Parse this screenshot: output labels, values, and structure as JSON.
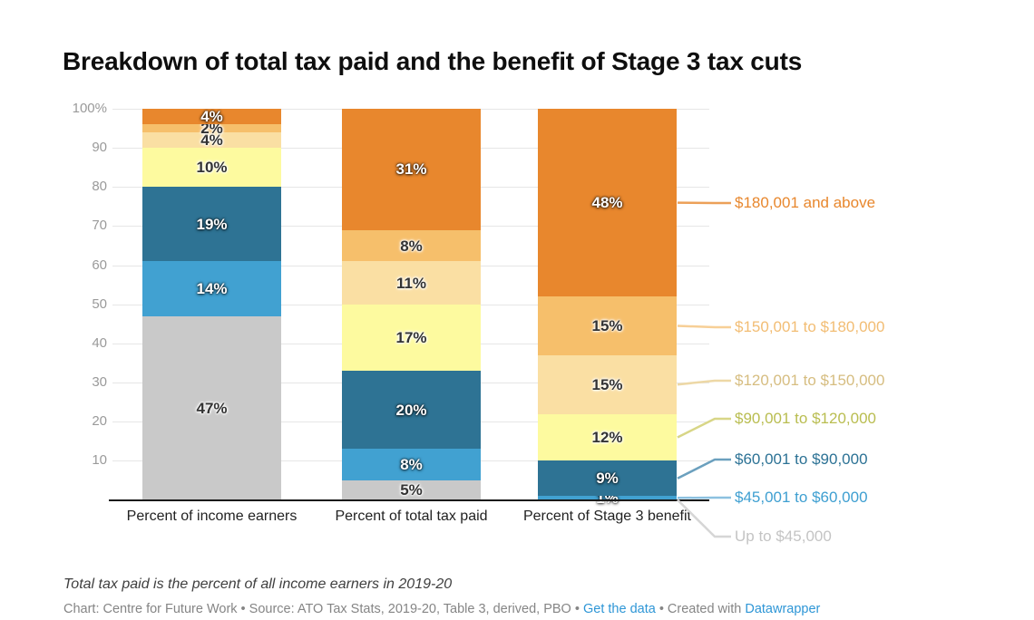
{
  "title": "Breakdown of total tax paid and the benefit of Stage 3 tax cuts",
  "chart_data": {
    "type": "bar",
    "stacked": true,
    "unit": "%",
    "grid": true,
    "legend_position": "right",
    "ylim": [
      0,
      100
    ],
    "categories": [
      "Percent of income earners",
      "Percent of total tax paid",
      "Percent of Stage 3 benefit"
    ],
    "y_ticks": [
      {
        "v": 100,
        "label": "100%"
      },
      {
        "v": 90,
        "label": "90"
      },
      {
        "v": 80,
        "label": "80"
      },
      {
        "v": 70,
        "label": "70"
      },
      {
        "v": 60,
        "label": "60"
      },
      {
        "v": 50,
        "label": "50"
      },
      {
        "v": 40,
        "label": "40"
      },
      {
        "v": 30,
        "label": "30"
      },
      {
        "v": 20,
        "label": "20"
      },
      {
        "v": 10,
        "label": "10"
      }
    ],
    "series": [
      {
        "name": "Up to $45,000",
        "values": [
          47,
          5,
          0
        ],
        "color": "#C9C9C9",
        "legend_color": "#C4C4C4",
        "line_color": "#D6D6D6",
        "text_style": "dark"
      },
      {
        "name": "$45,001 to $60,000",
        "values": [
          14,
          8,
          1
        ],
        "color": "#41A1D1",
        "legend_color": "#3E9FD1",
        "line_color": "#8CC1E0",
        "text_style": "light"
      },
      {
        "name": "$60,001 to $90,000",
        "values": [
          19,
          20,
          9
        ],
        "color": "#2E7394",
        "legend_color": "#2C7295",
        "line_color": "#6BA0BE",
        "text_style": "light"
      },
      {
        "name": "$90,001 to $120,000",
        "values": [
          10,
          17,
          12
        ],
        "color": "#FDFA9F",
        "legend_color": "#B9BD50",
        "line_color": "#D8D687",
        "text_style": "dark"
      },
      {
        "name": "$120,001 to $150,000",
        "values": [
          4,
          11,
          15
        ],
        "color": "#FADFA3",
        "legend_color": "#D6BD80",
        "line_color": "#EDD8A6",
        "text_style": "dark"
      },
      {
        "name": "$150,001 to $180,000",
        "values": [
          2,
          8,
          15
        ],
        "color": "#F6BF6B",
        "legend_color": "#F2BD74",
        "line_color": "#F7CF96",
        "text_style": "dark"
      },
      {
        "name": "$180,001 and above",
        "values": [
          4,
          31,
          48
        ],
        "color": "#E8872D",
        "legend_color": "#E8872D",
        "line_color": "#ECA058",
        "text_style": "light"
      }
    ]
  },
  "footer": {
    "note": "Total tax paid is the percent of all income earners in 2019-20",
    "byline_prefix": "Chart: Centre for Future Work • Source: ATO Tax Stats, 2019-20, Table 3, derived, PBO • ",
    "link1": "Get the data",
    "separator": " • Created with ",
    "link2": "Datawrapper",
    "link_color": "#2E96D6"
  }
}
